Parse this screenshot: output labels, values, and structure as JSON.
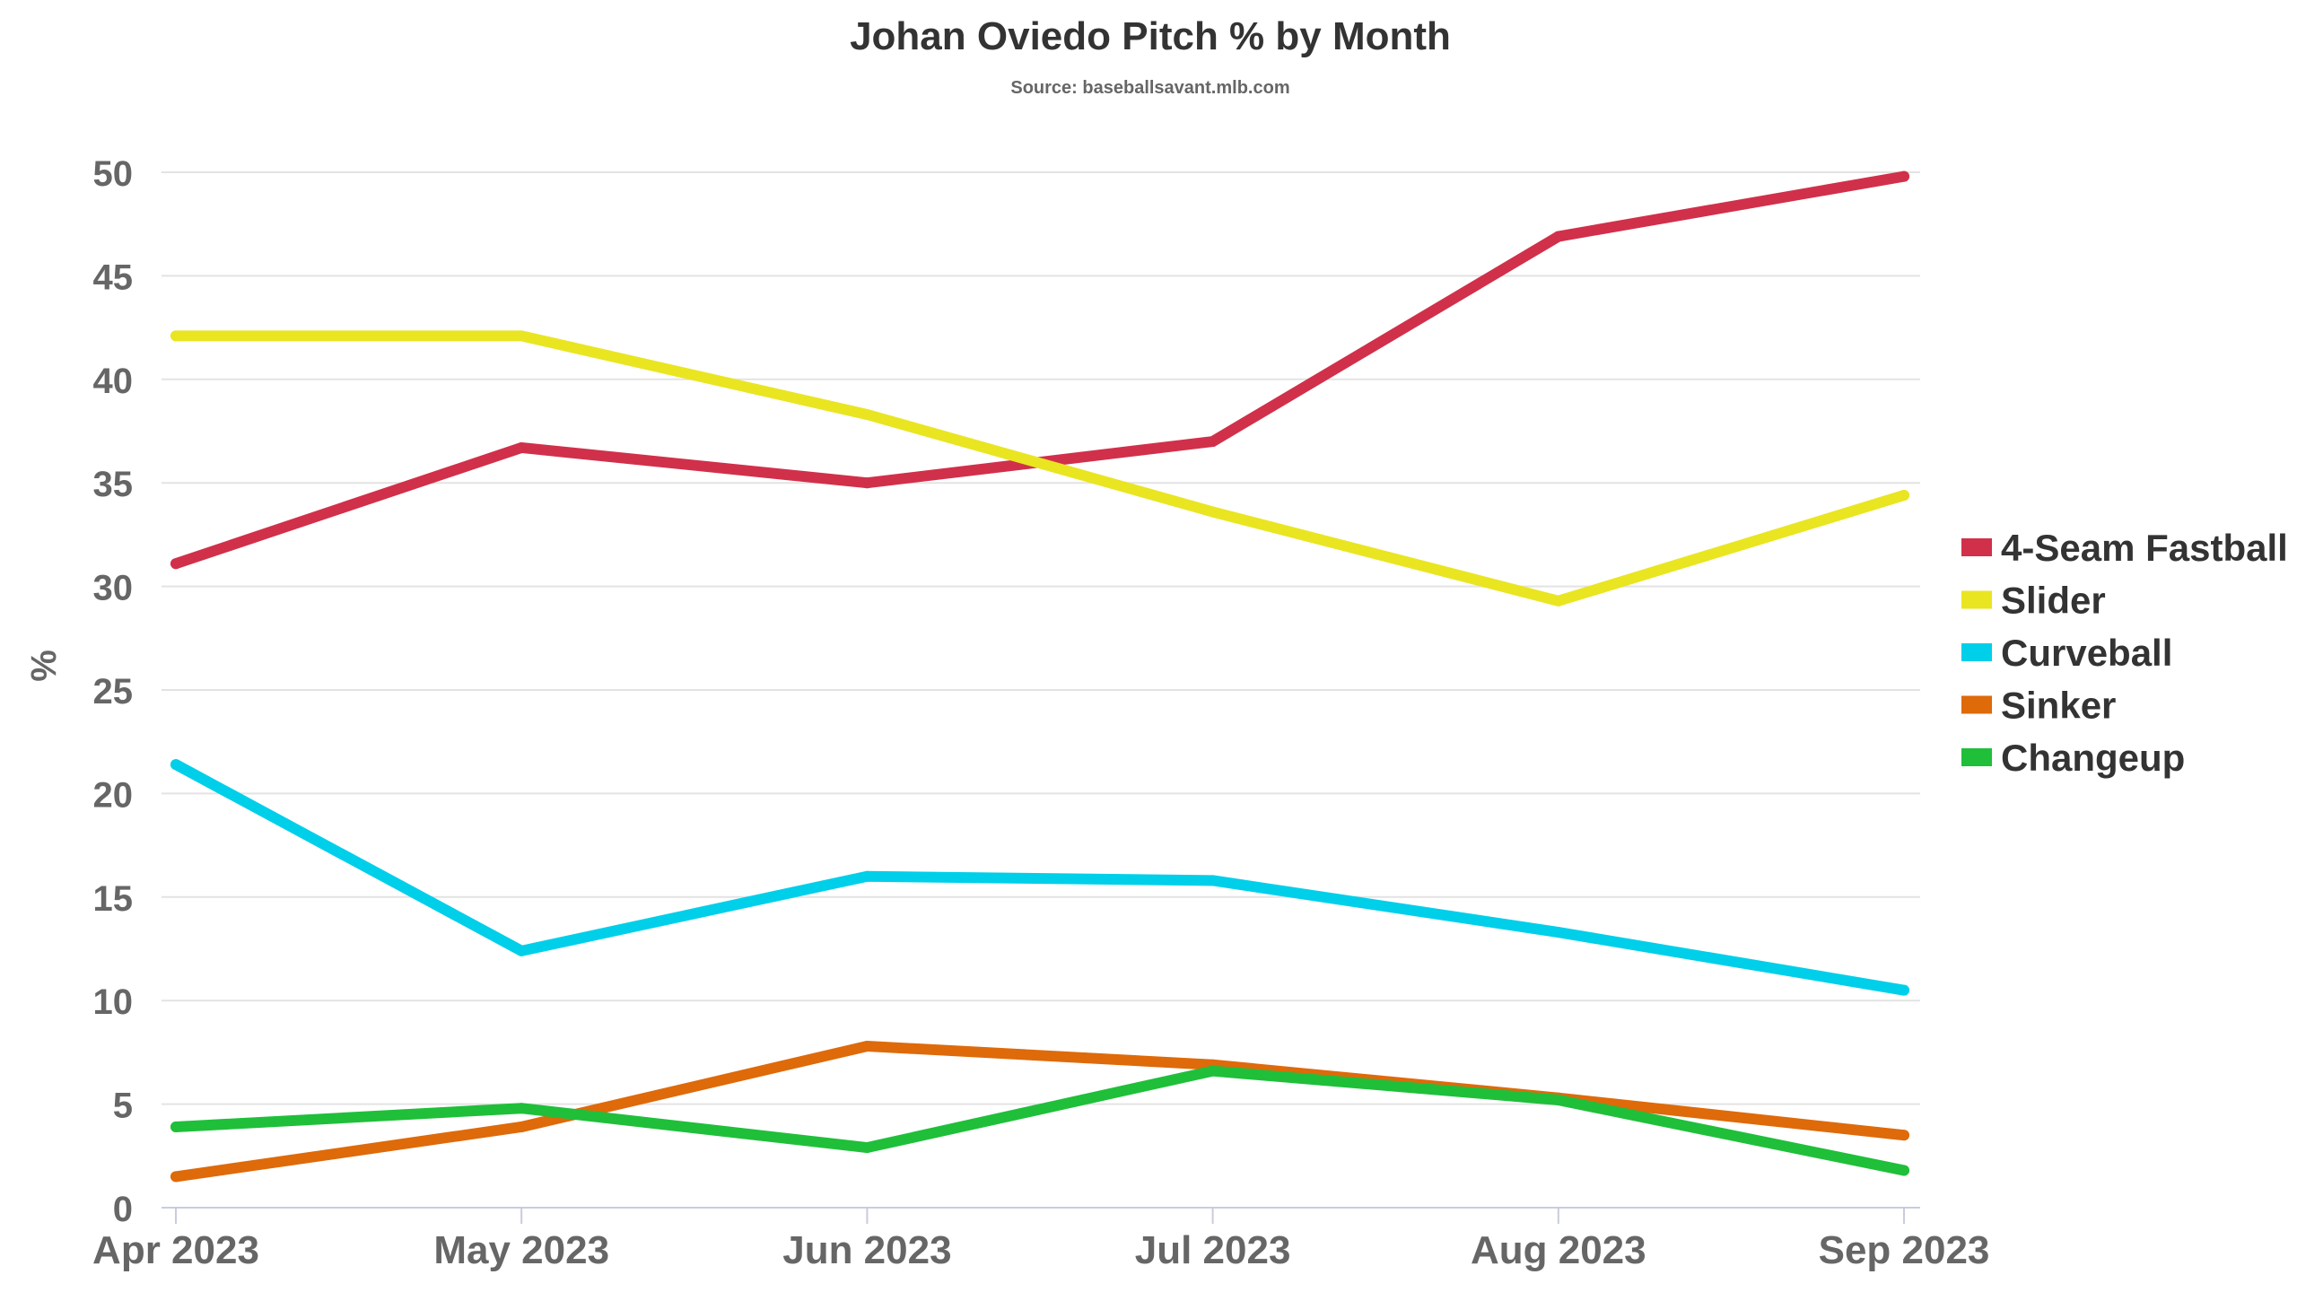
{
  "chart_data": {
    "type": "line",
    "title": "Johan Oviedo Pitch % by Month",
    "subtitle": "Source: baseballsavant.mlb.com",
    "xlabel": "",
    "ylabel": "%",
    "categories": [
      "Apr 2023",
      "May 2023",
      "Jun 2023",
      "Jul 2023",
      "Aug 2023",
      "Sep 2023"
    ],
    "ylim": [
      0,
      50
    ],
    "yticks": [
      0,
      5,
      10,
      15,
      20,
      25,
      30,
      35,
      40,
      45,
      50
    ],
    "grid": true,
    "legend_position": "right",
    "series": [
      {
        "name": "4-Seam Fastball",
        "color": "#d1304a",
        "values": [
          31.1,
          36.7,
          35.0,
          37.0,
          46.9,
          49.8
        ]
      },
      {
        "name": "Slider",
        "color": "#e9e521",
        "values": [
          42.1,
          42.1,
          38.3,
          33.6,
          29.3,
          34.4
        ]
      },
      {
        "name": "Curveball",
        "color": "#00cfea",
        "values": [
          21.4,
          12.4,
          16.0,
          15.8,
          13.3,
          10.5
        ]
      },
      {
        "name": "Sinker",
        "color": "#de6a0a",
        "values": [
          1.5,
          3.9,
          7.8,
          6.9,
          5.3,
          3.5
        ]
      },
      {
        "name": "Changeup",
        "color": "#1fbf3a",
        "values": [
          3.9,
          4.8,
          2.9,
          6.6,
          5.2,
          1.8
        ]
      }
    ]
  }
}
